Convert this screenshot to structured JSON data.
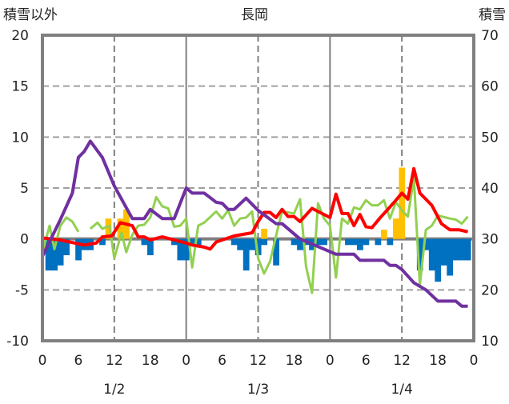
{
  "chart_data": {
    "type": "line",
    "title": "長岡",
    "ylabel": "積雪以外",
    "y2label": "積雪",
    "ylim": [
      -10,
      20
    ],
    "y2lim": [
      10,
      70
    ],
    "yticks": [
      "20",
      "15",
      "10",
      "5",
      "0",
      "-5",
      "-10"
    ],
    "y2ticks": [
      "70",
      "60",
      "50",
      "40",
      "30",
      "20",
      "10"
    ],
    "xlim_hours": [
      0,
      72
    ],
    "xticks": [
      "0",
      "6",
      "12",
      "18",
      "0",
      "6",
      "12",
      "18",
      "0",
      "6",
      "12",
      "18",
      "0"
    ],
    "date_labels": [
      "1/2",
      "1/3",
      "1/4"
    ],
    "grid": true,
    "colors": {
      "purple": "#7030a0",
      "red": "#ff0000",
      "green": "#92d050",
      "orange": "#ffc000",
      "blue": "#0070c0",
      "frame": "#808080"
    },
    "series": [
      {
        "name": "snow-depth",
        "axis": "right",
        "color": "#7030a0",
        "points": [
          [
            0,
            26.6
          ],
          [
            3,
            33.8
          ],
          [
            5,
            39
          ],
          [
            6,
            46
          ],
          [
            7,
            47.2
          ],
          [
            8,
            49.2
          ],
          [
            10,
            46
          ],
          [
            12,
            40.4
          ],
          [
            15,
            34
          ],
          [
            17,
            34
          ],
          [
            18,
            35.8
          ],
          [
            20,
            34
          ],
          [
            22,
            34
          ],
          [
            24,
            40
          ],
          [
            25,
            39
          ],
          [
            27,
            39
          ],
          [
            29,
            37.2
          ],
          [
            30,
            37
          ],
          [
            31,
            35.8
          ],
          [
            32,
            35.8
          ],
          [
            34,
            38
          ],
          [
            36,
            35.6
          ],
          [
            39,
            33
          ],
          [
            40,
            33
          ],
          [
            43,
            30
          ],
          [
            45,
            29
          ],
          [
            47,
            28
          ],
          [
            49,
            27
          ],
          [
            52,
            27
          ],
          [
            53,
            25.8
          ],
          [
            57,
            25.8
          ],
          [
            58,
            24.8
          ],
          [
            59,
            24.8
          ],
          [
            60,
            24
          ],
          [
            62,
            21.4
          ],
          [
            64,
            20
          ],
          [
            66,
            17.8
          ],
          [
            69,
            17.8
          ],
          [
            70,
            16.8
          ],
          [
            71,
            16.8
          ]
        ]
      },
      {
        "name": "temperature",
        "axis": "left",
        "color": "#ff0000",
        "points": [
          [
            0,
            0.1
          ],
          [
            3,
            -0.1
          ],
          [
            4.5,
            -0.3
          ],
          [
            7,
            -0.6
          ],
          [
            9,
            -0.4
          ],
          [
            10,
            0.2
          ],
          [
            11.6,
            0.3
          ],
          [
            13,
            1.6
          ],
          [
            15,
            1.3
          ],
          [
            16,
            0.2
          ],
          [
            17,
            0.2
          ],
          [
            18,
            -0.1
          ],
          [
            20,
            0.2
          ],
          [
            22,
            -0.1
          ],
          [
            24,
            -0.4
          ],
          [
            25,
            -0.6
          ],
          [
            27,
            -0.8
          ],
          [
            28,
            -1
          ],
          [
            29,
            -0.3
          ],
          [
            32,
            0.3
          ],
          [
            35,
            0.6
          ],
          [
            36,
            1.7
          ],
          [
            37,
            2.6
          ],
          [
            38,
            2.6
          ],
          [
            39,
            2.1
          ],
          [
            40,
            2.9
          ],
          [
            41,
            2.2
          ],
          [
            42,
            2.2
          ],
          [
            43,
            1.7
          ],
          [
            45,
            3
          ],
          [
            47,
            2.4
          ],
          [
            48,
            2.1
          ],
          [
            49,
            4.4
          ],
          [
            50,
            2.5
          ],
          [
            51,
            2.5
          ],
          [
            52,
            1.3
          ],
          [
            53,
            2.4
          ],
          [
            54,
            1.2
          ],
          [
            55,
            1.1
          ],
          [
            56.4,
            2.1
          ],
          [
            57.5,
            2.8
          ],
          [
            59,
            3.8
          ],
          [
            60,
            4.5
          ],
          [
            61,
            3.9
          ],
          [
            62,
            6.9
          ],
          [
            63,
            4.5
          ],
          [
            65,
            3.3
          ],
          [
            66.6,
            1.5
          ],
          [
            68,
            0.9
          ],
          [
            69.5,
            0.9
          ],
          [
            71,
            0.7
          ]
        ]
      },
      {
        "name": "wind",
        "axis": "left",
        "color": "#92d050",
        "segments": [
          [
            [
              0,
              -1.3
            ],
            [
              1.2,
              1.3
            ],
            [
              2,
              -1
            ],
            [
              3,
              1.3
            ],
            [
              4,
              2.1
            ],
            [
              5,
              1.7
            ],
            [
              6,
              0.7
            ]
          ],
          [
            [
              8,
              1
            ],
            [
              9.2,
              1.6
            ],
            [
              10,
              1
            ],
            [
              11.2,
              1.3
            ],
            [
              12,
              -1.9
            ],
            [
              13.2,
              0.6
            ],
            [
              14,
              -1.3
            ],
            [
              15,
              0.4
            ],
            [
              16,
              1.3
            ],
            [
              17,
              1.4
            ],
            [
              18,
              2.1
            ],
            [
              19,
              4.1
            ],
            [
              20,
              3.2
            ],
            [
              21,
              3
            ],
            [
              22,
              1.2
            ],
            [
              23,
              1.3
            ],
            [
              24,
              2
            ],
            [
              25,
              -2.8
            ],
            [
              26,
              1.3
            ],
            [
              27,
              1.6
            ],
            [
              29,
              2.7
            ],
            [
              30,
              2
            ],
            [
              31,
              2.8
            ],
            [
              32,
              1.3
            ],
            [
              33,
              2
            ],
            [
              34,
              2.1
            ],
            [
              35,
              2.7
            ],
            [
              36,
              -1.9
            ],
            [
              37,
              -3.4
            ],
            [
              38,
              -2.2
            ],
            [
              39.4,
              1.3
            ],
            [
              40,
              2.7
            ],
            [
              42,
              2.5
            ],
            [
              43,
              3.9
            ],
            [
              44,
              -2.7
            ],
            [
              45,
              -5.3
            ],
            [
              46,
              3.5
            ],
            [
              47,
              2
            ],
            [
              48,
              1.3
            ],
            [
              49,
              -3.8
            ],
            [
              50,
              2
            ],
            [
              51,
              1.5
            ],
            [
              52,
              3.1
            ],
            [
              53,
              2.9
            ],
            [
              54,
              3.8
            ],
            [
              55,
              3.3
            ],
            [
              56,
              3.3
            ],
            [
              57,
              3.8
            ],
            [
              58,
              2
            ],
            [
              59,
              3.6
            ],
            [
              60,
              2.8
            ],
            [
              61,
              2.2
            ],
            [
              62,
              6
            ],
            [
              63,
              -4.5
            ],
            [
              64,
              0.9
            ],
            [
              65,
              1.3
            ],
            [
              66,
              2.3
            ],
            [
              68,
              2
            ],
            [
              69,
              1.9
            ],
            [
              70,
              1.5
            ],
            [
              71,
              2.2
            ]
          ]
        ]
      },
      {
        "name": "precipitation",
        "type": "bar",
        "axis": "left",
        "color": "#ffc000",
        "bars": [
          [
            11,
            2
          ],
          [
            13,
            2
          ],
          [
            14,
            2.9
          ],
          [
            37,
            1
          ],
          [
            57,
            0.9
          ],
          [
            59,
            2
          ],
          [
            60,
            7
          ]
        ]
      },
      {
        "name": "snow-change",
        "type": "bar",
        "axis": "left",
        "color": "#0070c0",
        "bars": [
          [
            1,
            -3.1
          ],
          [
            2,
            -3.1
          ],
          [
            3,
            -2.6
          ],
          [
            4,
            -1.6
          ],
          [
            6,
            -2.1
          ],
          [
            7,
            -1.1
          ],
          [
            8,
            -1.1
          ],
          [
            10,
            -0.6
          ],
          [
            17,
            -0.6
          ],
          [
            18,
            -1.6
          ],
          [
            22,
            -0.6
          ],
          [
            23,
            -2.1
          ],
          [
            24,
            -2.1
          ],
          [
            25,
            -0.6
          ],
          [
            26,
            -0.6
          ],
          [
            32,
            -0.6
          ],
          [
            33,
            -1.1
          ],
          [
            34,
            -3.1
          ],
          [
            35,
            -1.1
          ],
          [
            36,
            -1.6
          ],
          [
            37,
            -0.6
          ],
          [
            39,
            -2.6
          ],
          [
            42,
            -0.6
          ],
          [
            43,
            -1.1
          ],
          [
            44,
            -0.6
          ],
          [
            45,
            -1.1
          ],
          [
            46,
            -0.6
          ],
          [
            47,
            -0.6
          ],
          [
            51,
            -0.6
          ],
          [
            52,
            -0.6
          ],
          [
            53,
            -1.1
          ],
          [
            54,
            -0.6
          ],
          [
            56,
            -0.6
          ],
          [
            58,
            -0.6
          ],
          [
            63,
            -3.1
          ],
          [
            64,
            -1.1
          ],
          [
            65,
            -3.1
          ],
          [
            66,
            -4.2
          ],
          [
            67,
            -2.6
          ],
          [
            68,
            -3.6
          ],
          [
            69,
            -2.1
          ],
          [
            70,
            -2.1
          ],
          [
            71,
            -2.1
          ]
        ]
      }
    ]
  }
}
